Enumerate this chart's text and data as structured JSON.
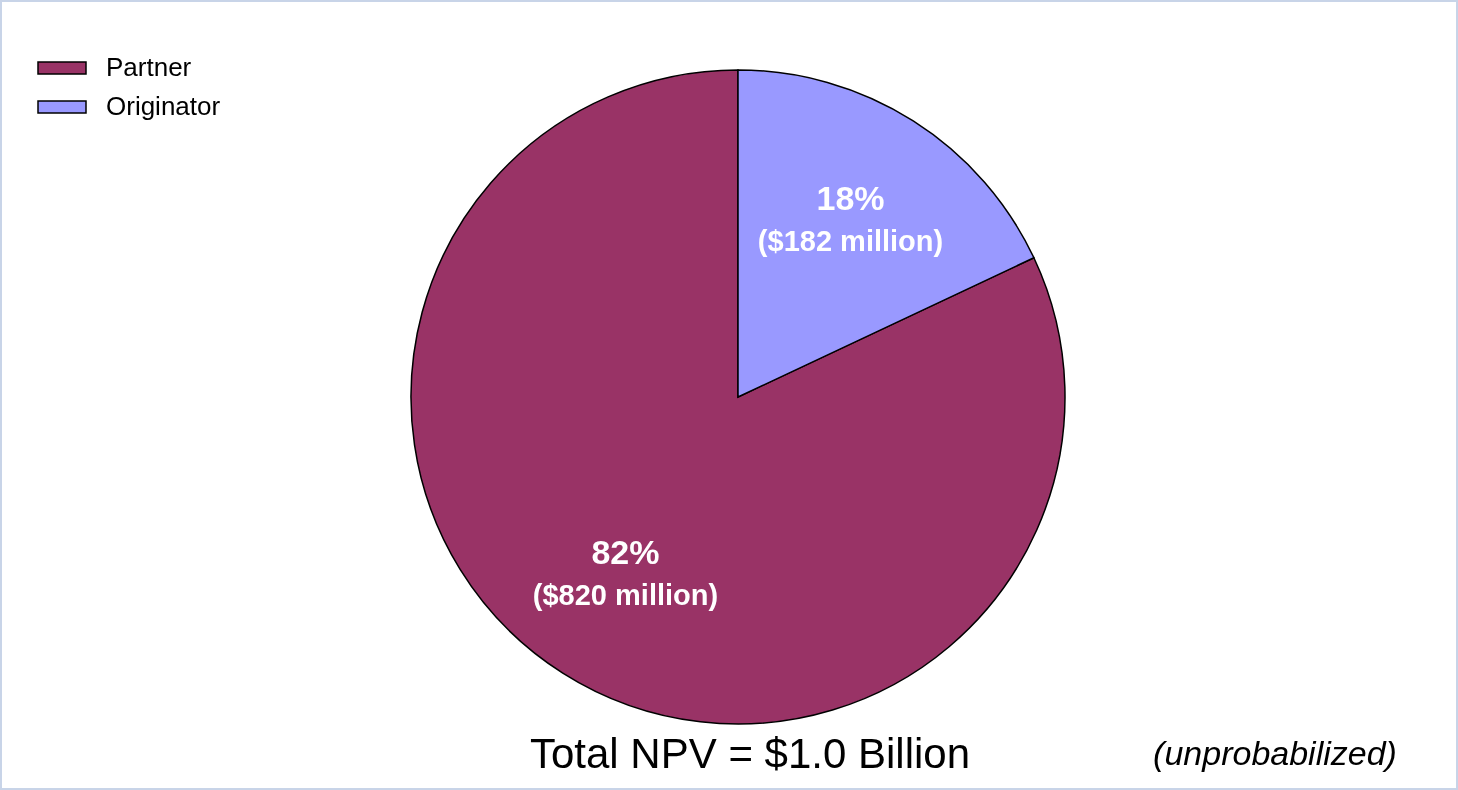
{
  "chart_data": {
    "type": "pie",
    "title": "Total NPV = $1.0 Billion",
    "categories": [
      "Partner",
      "Originator"
    ],
    "values": [
      82,
      18
    ],
    "colors": [
      "#993366",
      "#9999ff"
    ],
    "value_labels": [
      "82%\n($820 million)",
      "18%\n($182 million)"
    ],
    "annotations": [
      "(unprobabilized)"
    ],
    "legend": "top left"
  }
}
